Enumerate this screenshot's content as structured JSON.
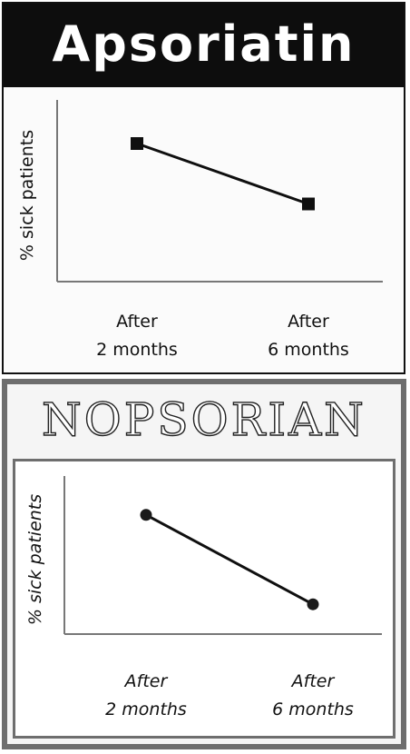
{
  "chart_data": [
    {
      "type": "line",
      "title": "Apsoriatin",
      "ylabel": "% sick patients",
      "xlabel": "",
      "categories": [
        "After\n2 months",
        "After\n6 months"
      ],
      "series": [
        {
          "values": [
            80,
            45
          ]
        }
      ],
      "ylim": [
        0,
        100
      ],
      "grid": false,
      "marker": "square"
    },
    {
      "type": "line",
      "title": "NOPSORIAN",
      "ylabel": "% sick patients",
      "xlabel": "",
      "categories": [
        "After\n2 months",
        "After\n6 months"
      ],
      "series": [
        {
          "values": [
            80,
            20
          ]
        }
      ],
      "ylim": [
        0,
        100
      ],
      "grid": false,
      "marker": "circle"
    }
  ]
}
